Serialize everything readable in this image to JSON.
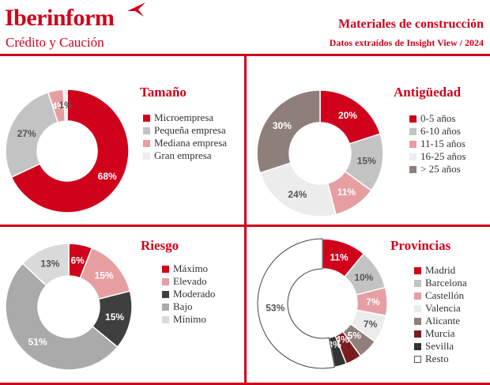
{
  "header": {
    "brand": "Iberinform",
    "brand_sub": "Crédito y Caución",
    "title": "Materiales de construcción",
    "subtitle": "Datos extraídos de Insight View / 2024",
    "brand_color": "#d0021b"
  },
  "chart_data": [
    {
      "type": "pie",
      "title": "Tamaño",
      "categories": [
        "Microempresa",
        "Pequeña empresa",
        "Mediana empresa",
        "Gran empresa"
      ],
      "values": [
        68,
        27,
        4,
        1
      ],
      "labels": [
        "68%",
        "27%",
        "4%",
        "1%"
      ],
      "colors": [
        "#d0021b",
        "#c3c3c3",
        "#e69ea1",
        "#ececec"
      ],
      "label_colors": [
        "#ffffff",
        "#555555",
        "#ffffff",
        "#555555"
      ],
      "start_category_index": 0,
      "start_angle_deg": 0
    },
    {
      "type": "pie",
      "title": "Antigüedad",
      "categories": [
        "0-5 años",
        "6-10 años",
        "11-15 años",
        "16-25 años",
        "> 25 años"
      ],
      "values": [
        20,
        15,
        11,
        24,
        30
      ],
      "labels": [
        "20%",
        "15%",
        "11%",
        "24%",
        "30%"
      ],
      "colors": [
        "#d0021b",
        "#c3c3c3",
        "#e69ea1",
        "#ececec",
        "#8f7f7a"
      ],
      "label_colors": [
        "#ffffff",
        "#555555",
        "#ffffff",
        "#555555",
        "#ffffff"
      ],
      "start_angle_deg": 0
    },
    {
      "type": "pie",
      "title": "Riesgo",
      "categories": [
        "Máximo",
        "Elevado",
        "Moderado",
        "Bajo",
        "Mínimo"
      ],
      "values": [
        6,
        15,
        15,
        51,
        13
      ],
      "labels": [
        "6%",
        "15%",
        "15%",
        "51%",
        "13%"
      ],
      "colors": [
        "#d0021b",
        "#e69ea1",
        "#3f3f3f",
        "#aaaaaa",
        "#d9d9d9"
      ],
      "label_colors": [
        "#ffffff",
        "#ffffff",
        "#ffffff",
        "#ffffff",
        "#555555"
      ],
      "start_angle_deg": 0
    },
    {
      "type": "pie",
      "title": "Provincias",
      "categories": [
        "Madrid",
        "Barcelona",
        "Castellón",
        "Valencia",
        "Alicante",
        "Murcia",
        "Sevilla",
        "Resto"
      ],
      "values": [
        11,
        10,
        7,
        7,
        5,
        4,
        3,
        53
      ],
      "labels": [
        "11%",
        "10%",
        "7%",
        "7%",
        "5%",
        "4%",
        "3%",
        "53%"
      ],
      "colors": [
        "#d0021b",
        "#c3c3c3",
        "#e69ea1",
        "#ececec",
        "#8f7f7a",
        "#7a1b22",
        "#333333",
        "#ffffff"
      ],
      "label_colors": [
        "#ffffff",
        "#555555",
        "#ffffff",
        "#555555",
        "#ffffff",
        "#ffffff",
        "#ffffff",
        "#555555"
      ],
      "start_angle_deg": 0
    }
  ]
}
